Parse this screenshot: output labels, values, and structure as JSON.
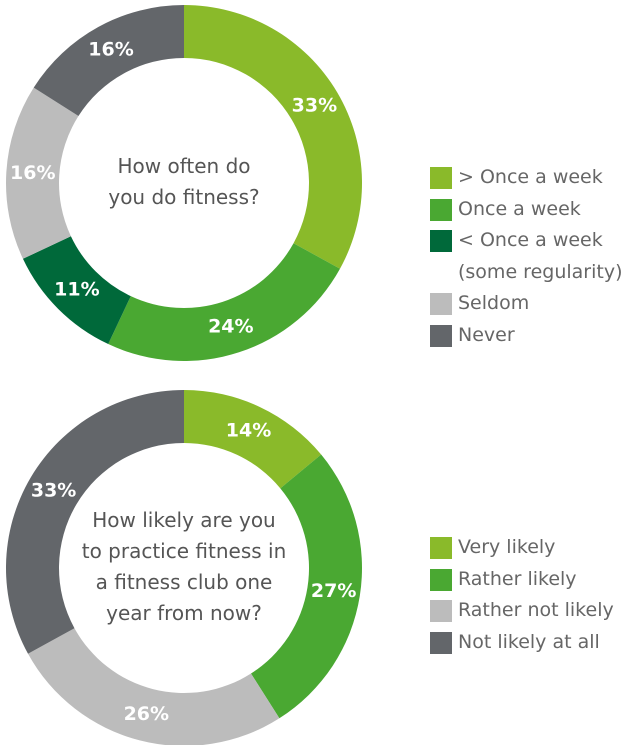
{
  "chart_data": [
    {
      "type": "donut",
      "title": [
        "How often do",
        "you do fitness?"
      ],
      "categories": [
        "> Once a week",
        "Once a week",
        "< Once a week (some regularity)",
        "Seldom",
        "Never"
      ],
      "values": [
        33,
        24,
        11,
        16,
        16
      ],
      "value_labels": [
        "33%",
        "24%",
        "11%",
        "16%",
        "16%"
      ],
      "colors": [
        "#8aba2a",
        "#4aa832",
        "#00693a",
        "#bcbcbc",
        "#63666a"
      ],
      "legend": "right"
    },
    {
      "type": "donut",
      "title": [
        "How likely are you",
        "to practice fitness in",
        "a fitness club one",
        "year from now?"
      ],
      "categories": [
        "Very likely",
        "Rather likely",
        "Rather not likely",
        "Not likely at all"
      ],
      "values": [
        14,
        27,
        26,
        33
      ],
      "value_labels": [
        "14%",
        "27%",
        "26%",
        "33%"
      ],
      "colors": [
        "#8aba2a",
        "#4aa832",
        "#bcbcbc",
        "#63666a"
      ],
      "legend": "right"
    }
  ]
}
